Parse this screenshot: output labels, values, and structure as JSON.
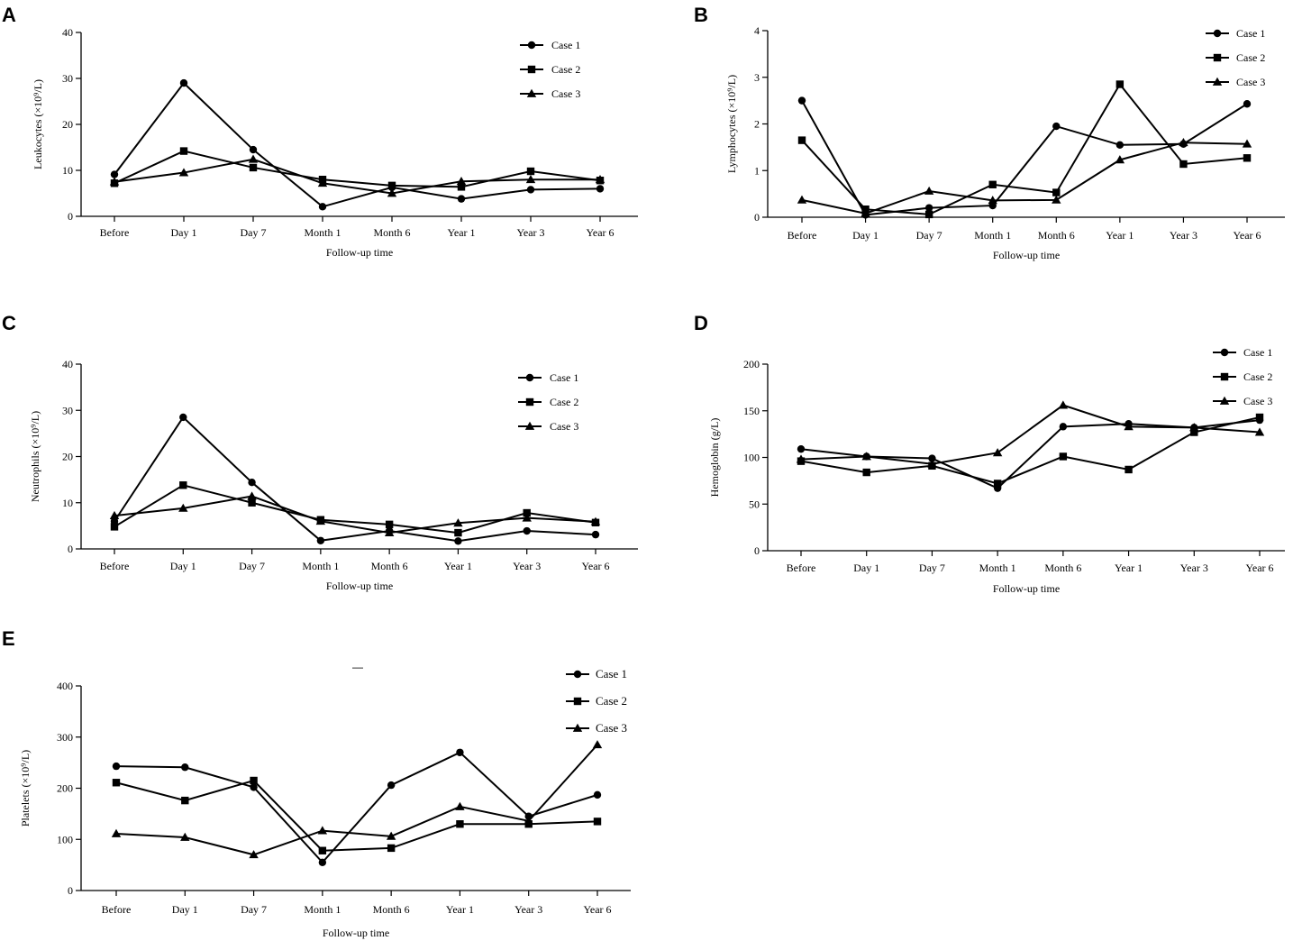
{
  "figure": {
    "stray_mark": "—"
  },
  "chart_data": [
    {
      "panel": "A",
      "type": "line",
      "categories": [
        "Before",
        "Day 1",
        "Day 7",
        "Month 1",
        "Month 6",
        "Year 1",
        "Year 3",
        "Year 6"
      ],
      "xlabel": "Follow-up time",
      "ylabel": "Leukocytes (×10⁹/L)",
      "ylim": [
        0,
        40
      ],
      "yticks": [
        0,
        10,
        20,
        30,
        40
      ],
      "legend_position": "top-right",
      "series": [
        {
          "name": "Case 1",
          "marker": "circle",
          "values": [
            9.1,
            29,
            14.5,
            2.1,
            6.3,
            3.8,
            5.8,
            6.0
          ]
        },
        {
          "name": "Case 2",
          "marker": "square",
          "values": [
            7.2,
            14.2,
            10.6,
            8.0,
            6.7,
            6.4,
            9.8,
            7.8
          ]
        },
        {
          "name": "Case 3",
          "marker": "triangle",
          "values": [
            7.5,
            9.5,
            12.4,
            7.2,
            5.0,
            7.6,
            8.0,
            8.0
          ]
        }
      ]
    },
    {
      "panel": "B",
      "type": "line",
      "categories": [
        "Before",
        "Day 1",
        "Day 7",
        "Month 1",
        "Month 6",
        "Year 1",
        "Year 3",
        "Year 6"
      ],
      "xlabel": "Follow-up time",
      "ylabel": "Lymphocytes (×10⁹/L)",
      "ylim": [
        0,
        4
      ],
      "yticks": [
        0,
        1,
        2,
        3,
        4
      ],
      "legend_position": "top-right",
      "series": [
        {
          "name": "Case 1",
          "marker": "circle",
          "values": [
            2.5,
            0.05,
            0.2,
            0.25,
            1.95,
            1.55,
            1.57,
            2.43
          ]
        },
        {
          "name": "Case 2",
          "marker": "square",
          "values": [
            1.65,
            0.17,
            0.06,
            0.7,
            0.53,
            2.85,
            1.14,
            1.27
          ]
        },
        {
          "name": "Case 3",
          "marker": "triangle",
          "values": [
            0.37,
            0.08,
            0.56,
            0.36,
            0.37,
            1.23,
            1.6,
            1.57
          ]
        }
      ]
    },
    {
      "panel": "C",
      "type": "line",
      "categories": [
        "Before",
        "Day 1",
        "Day 7",
        "Month 1",
        "Month 6",
        "Year 1",
        "Year 3",
        "Year 6"
      ],
      "xlabel": "Follow-up time",
      "ylabel": "Neutrophils (×10⁹/L)",
      "ylim": [
        0,
        40
      ],
      "yticks": [
        0,
        10,
        20,
        30,
        40
      ],
      "legend_position": "top-right",
      "series": [
        {
          "name": "Case 1",
          "marker": "circle",
          "values": [
            6.0,
            28.5,
            14.4,
            1.8,
            3.9,
            1.7,
            3.9,
            3.1
          ]
        },
        {
          "name": "Case 2",
          "marker": "square",
          "values": [
            4.8,
            13.8,
            10.0,
            6.3,
            5.3,
            3.5,
            7.8,
            5.7
          ]
        },
        {
          "name": "Case 3",
          "marker": "triangle",
          "values": [
            7.2,
            8.8,
            11.4,
            6.0,
            3.5,
            5.6,
            6.7,
            5.9
          ]
        }
      ]
    },
    {
      "panel": "D",
      "type": "line",
      "categories": [
        "Before",
        "Day 1",
        "Day 7",
        "Month 1",
        "Month 6",
        "Year 1",
        "Year 3",
        "Year 6"
      ],
      "xlabel": "Follow-up time",
      "ylabel": "Hemoglobin (g/L)",
      "ylim": [
        0,
        200
      ],
      "yticks": [
        0,
        50,
        100,
        150,
        200
      ],
      "legend_position": "top-right",
      "series": [
        {
          "name": "Case 1",
          "marker": "circle",
          "values": [
            109,
            101,
            99,
            67,
            133,
            136,
            132,
            140
          ]
        },
        {
          "name": "Case 2",
          "marker": "square",
          "values": [
            96,
            84,
            91,
            72,
            101,
            87,
            127,
            143
          ]
        },
        {
          "name": "Case 3",
          "marker": "triangle",
          "values": [
            98,
            101,
            93,
            105,
            156,
            133,
            132,
            127
          ]
        }
      ]
    },
    {
      "panel": "E",
      "type": "line",
      "categories": [
        "Before",
        "Day 1",
        "Day 7",
        "Month 1",
        "Month 6",
        "Year 1",
        "Year 3",
        "Year 6"
      ],
      "xlabel": "Follow-up time",
      "ylabel": "Platelets (×10⁹/L)",
      "ylim": [
        0,
        400
      ],
      "yticks": [
        0,
        100,
        200,
        300,
        400
      ],
      "legend_position": "top-right",
      "series": [
        {
          "name": "Case 1",
          "marker": "circle",
          "values": [
            243,
            241,
            202,
            55,
            206,
            270,
            145,
            187
          ]
        },
        {
          "name": "Case 2",
          "marker": "square",
          "values": [
            211,
            176,
            215,
            78,
            83,
            130,
            130,
            135
          ]
        },
        {
          "name": "Case 3",
          "marker": "triangle",
          "values": [
            111,
            104,
            70,
            117,
            106,
            164,
            136,
            285
          ]
        }
      ]
    }
  ]
}
